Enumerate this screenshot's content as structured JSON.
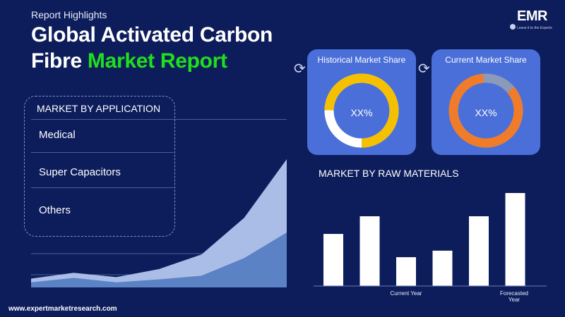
{
  "header": {
    "subtitle": "Report Highlights",
    "title_line1": "Global Activated Carbon",
    "title_line2_prefix": "Fibre ",
    "title_line2_accent": "Market Report"
  },
  "logo": {
    "name": "EMR",
    "tagline": "Leave it to the Experts"
  },
  "application": {
    "title": "MARKET BY APPLICATION",
    "items": [
      "Medical",
      "Super Capacitors",
      "Others"
    ]
  },
  "historical": {
    "title": "Historical Market Share",
    "value": "XX%",
    "ring_color": "#f5c000",
    "track_color": "#ffffff"
  },
  "current": {
    "title": "Current Market Share",
    "value": "XX%",
    "ring_color": "#f07c2a",
    "track_color": "#8a9ab8"
  },
  "raw_materials": {
    "title": "MARKET BY RAW MATERIALS",
    "x_labels": [
      "Current Year",
      "Forecasted Year"
    ]
  },
  "chart_data": [
    {
      "type": "area",
      "title": "",
      "series": [
        {
          "values": [
            12,
            20,
            14,
            25,
            45,
            95,
            175
          ]
        },
        {
          "values": [
            7,
            13,
            7,
            11,
            16,
            40,
            75
          ]
        }
      ],
      "ylim": [
        0,
        175
      ],
      "colors": [
        "#a9bde6",
        "#5a82c4"
      ]
    },
    {
      "type": "bar",
      "categories": [
        "",
        "",
        "Current Year",
        "",
        "",
        "Forecasted Year"
      ],
      "values": [
        56,
        75,
        31,
        38,
        75,
        100
      ],
      "ylim": [
        0,
        100
      ],
      "color": "#ffffff"
    }
  ],
  "footer": {
    "url": "www.expertmarketresearch.com"
  },
  "colors": {
    "background": "#0d1d5c",
    "accent_green": "#1fe01c",
    "card_blue": "#4a6fd8"
  }
}
